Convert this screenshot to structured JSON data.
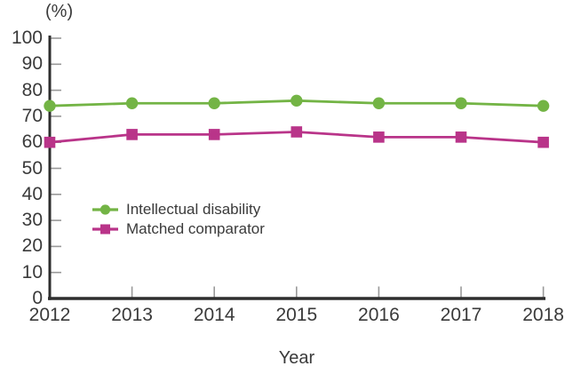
{
  "chart_data": {
    "type": "line",
    "unit_label": "(%)",
    "xlabel": "Year",
    "categories": [
      "2012",
      "2013",
      "2014",
      "2015",
      "2016",
      "2017",
      "2018"
    ],
    "series": [
      {
        "name": "Intellectual disability",
        "marker": "circle",
        "color": "#73b445",
        "values": [
          74,
          75,
          75,
          76,
          75,
          75,
          74
        ]
      },
      {
        "name": "Matched comparator",
        "marker": "square",
        "color": "#b93489",
        "values": [
          60,
          63,
          63,
          64,
          62,
          62,
          60
        ]
      }
    ],
    "ylim": [
      0,
      100
    ],
    "y_ticks": [
      0,
      10,
      20,
      30,
      40,
      50,
      60,
      70,
      80,
      90,
      100
    ],
    "grid": false,
    "legend_position": "inside-left-middle"
  },
  "colors": {
    "axis": "#2e2e2e",
    "tick": "#999999",
    "text": "#3a3a3a",
    "background": "#ffffff"
  }
}
